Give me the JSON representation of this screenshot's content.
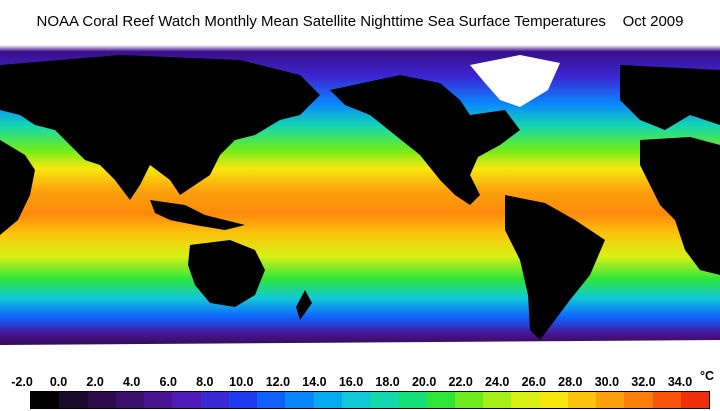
{
  "title": "NOAA Coral Reef Watch Monthly Mean Satellite Nighttime Sea Surface Temperatures    Oct 2009",
  "colorbar": {
    "labels": [
      "-2.0",
      "0.0",
      "2.0",
      "4.0",
      "6.0",
      "8.0",
      "10.0",
      "12.0",
      "14.0",
      "16.0",
      "18.0",
      "20.0",
      "22.0",
      "24.0",
      "26.0",
      "28.0",
      "30.0",
      "32.0",
      "34.0"
    ],
    "unit": "°C",
    "colors": [
      "#000000",
      "#1c0a2e",
      "#2e0c4c",
      "#3d0f6e",
      "#4a1390",
      "#4d1ab8",
      "#3a28d4",
      "#1f3af0",
      "#1060ff",
      "#0a86ff",
      "#06aaf0",
      "#10c8d8",
      "#14d8b0",
      "#14e07a",
      "#2ee63a",
      "#6aec1e",
      "#a6f01a",
      "#d8f014",
      "#f6e80e",
      "#fcc40c",
      "#fca00c",
      "#fc7c0c",
      "#f8540a",
      "#f0300a"
    ]
  },
  "colors": {
    "land": "#000000",
    "ice": "#ffffff",
    "background": "#ffffff"
  }
}
